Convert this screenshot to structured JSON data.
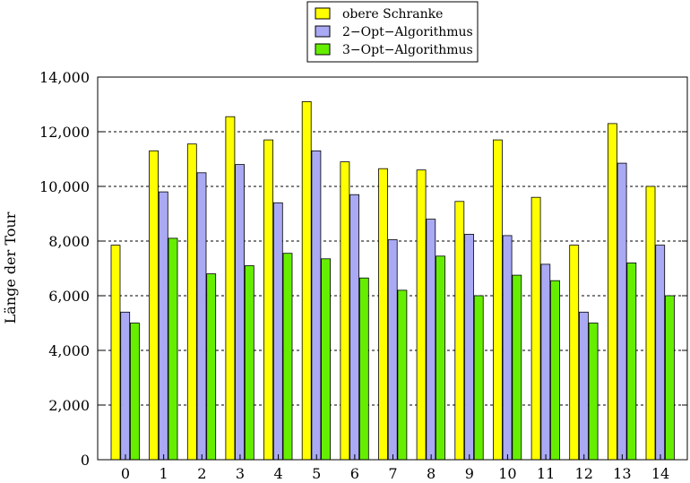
{
  "chart_data": {
    "type": "bar",
    "title": "",
    "xlabel": "",
    "ylabel": "Länge der Tour",
    "ylim": [
      0,
      14000
    ],
    "yticks": [
      "0",
      "2,000",
      "4,000",
      "6,000",
      "8,000",
      "10,000",
      "12,000",
      "14,000"
    ],
    "ytick_values": [
      0,
      2000,
      4000,
      6000,
      8000,
      10000,
      12000,
      14000
    ],
    "grid": "horizontal dashed",
    "legend_position": "top-center",
    "categories": [
      "0",
      "1",
      "2",
      "3",
      "4",
      "5",
      "6",
      "7",
      "8",
      "9",
      "10",
      "11",
      "12",
      "13",
      "14"
    ],
    "series": [
      {
        "name": "obere Schranke",
        "color": "#ffff00",
        "values": [
          7850,
          11300,
          11550,
          12550,
          11700,
          13100,
          10900,
          10650,
          10600,
          9450,
          11700,
          9600,
          7850,
          12300,
          10000
        ]
      },
      {
        "name": "2−Opt−Algorithmus",
        "color": "#a9a9f4",
        "values": [
          5400,
          9800,
          10500,
          10800,
          9400,
          11300,
          9700,
          8050,
          8800,
          8250,
          8200,
          7150,
          5400,
          10850,
          7850
        ]
      },
      {
        "name": "3−Opt−Algorithmus",
        "color": "#66ee00",
        "values": [
          5000,
          8100,
          6800,
          7100,
          7550,
          7350,
          6650,
          6200,
          7450,
          6000,
          6750,
          6550,
          5000,
          7200,
          6000
        ]
      }
    ]
  }
}
